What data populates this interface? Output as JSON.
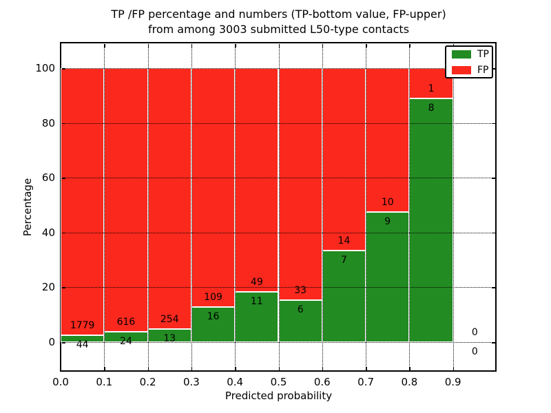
{
  "chart_data": {
    "type": "bar",
    "stacked": true,
    "title_line1": "TP /FP percentage and numbers (TP-bottom value, FP-upper)",
    "title_line2": "from among 3003 submitted L50-type contacts",
    "xlabel": "Predicted probability",
    "ylabel": "Percentage",
    "series": [
      {
        "name": "TP",
        "color": "#228b22"
      },
      {
        "name": "FP",
        "color": "#fb281d"
      }
    ],
    "bins": [
      {
        "range": [
          0.0,
          0.1
        ],
        "tp": 44,
        "fp": 1779
      },
      {
        "range": [
          0.1,
          0.2
        ],
        "tp": 24,
        "fp": 616
      },
      {
        "range": [
          0.2,
          0.3
        ],
        "tp": 13,
        "fp": 254
      },
      {
        "range": [
          0.3,
          0.4
        ],
        "tp": 16,
        "fp": 109
      },
      {
        "range": [
          0.4,
          0.5
        ],
        "tp": 11,
        "fp": 49
      },
      {
        "range": [
          0.5,
          0.6
        ],
        "tp": 6,
        "fp": 33
      },
      {
        "range": [
          0.6,
          0.7
        ],
        "tp": 7,
        "fp": 14
      },
      {
        "range": [
          0.7,
          0.8
        ],
        "tp": 9,
        "fp": 10
      },
      {
        "range": [
          0.8,
          0.9
        ],
        "tp": 8,
        "fp": 1
      },
      {
        "range": [
          0.9,
          1.0
        ],
        "tp": 0,
        "fp": 0
      }
    ],
    "bar_height_mode": "percent_of_bin_total_stacked_to_100",
    "x_tick_values": [
      0,
      0.1,
      0.2,
      0.3,
      0.4,
      0.5,
      0.6,
      0.7,
      0.8,
      0.9
    ],
    "x_tick_labels": [
      "0.0",
      "0.1",
      "0.2",
      "0.3",
      "0.4",
      "0.5",
      "0.6",
      "0.7",
      "0.8",
      "0.9"
    ],
    "y_tick_values": [
      0,
      20,
      40,
      60,
      80,
      100
    ],
    "y_tick_labels": [
      "0",
      "20",
      "40",
      "60",
      "80",
      "100"
    ],
    "xlim": [
      0.0,
      1.0
    ],
    "ylim": [
      -10.8,
      109.3
    ],
    "grid": true,
    "legend_position": "upper right"
  }
}
